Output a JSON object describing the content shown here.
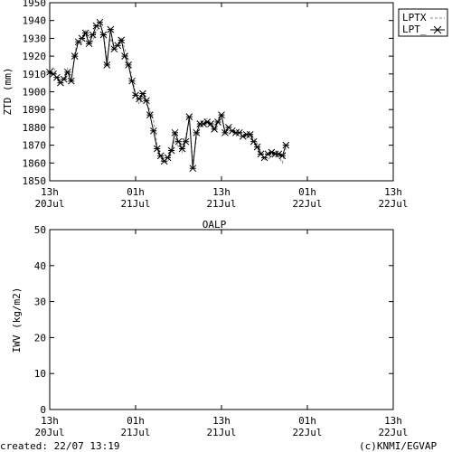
{
  "chart_data": [
    {
      "type": "line",
      "ylabel": "ZTD (mm)",
      "ylim": [
        1850,
        1950
      ],
      "yticks": [
        1850,
        1860,
        1870,
        1880,
        1890,
        1900,
        1910,
        1920,
        1930,
        1940,
        1950
      ],
      "xlim_hours": [
        0,
        48
      ],
      "xticks": [
        {
          "hour": 0,
          "top": "13h",
          "bottom": "20Jul"
        },
        {
          "hour": 12,
          "top": "01h",
          "bottom": "21Jul"
        },
        {
          "hour": 24,
          "top": "13h",
          "bottom": "21Jul"
        },
        {
          "hour": 36,
          "top": "01h",
          "bottom": "22Jul"
        },
        {
          "hour": 48,
          "top": "13h",
          "bottom": "22Jul"
        }
      ],
      "legend_position": "right-outside-top",
      "series": [
        {
          "name": "LPTX",
          "style": "dashed",
          "color": "#888888",
          "points": [
            [
              0.0,
              1910
            ],
            [
              0.5,
              1914
            ],
            [
              1.0,
              1909
            ],
            [
              1.5,
              1906
            ],
            [
              2.0,
              1908
            ],
            [
              2.5,
              1913
            ],
            [
              3.0,
              1905
            ],
            [
              3.5,
              1922
            ],
            [
              4.0,
              1929
            ],
            [
              4.5,
              1927
            ],
            [
              5.0,
              1935
            ],
            [
              5.5,
              1928
            ],
            [
              6.0,
              1928
            ],
            [
              6.5,
              1934
            ],
            [
              7.0,
              1937
            ],
            [
              7.5,
              1933
            ],
            [
              8.0,
              1918
            ],
            [
              8.5,
              1930
            ],
            [
              9.0,
              1925
            ],
            [
              9.5,
              1927
            ],
            [
              10.0,
              1930
            ],
            [
              10.5,
              1924
            ],
            [
              11.0,
              1918
            ],
            [
              11.5,
              1908
            ],
            [
              12.0,
              1899
            ],
            [
              12.5,
              1893
            ],
            [
              13.0,
              1897
            ],
            [
              13.5,
              1893
            ],
            [
              14.0,
              1890
            ],
            [
              14.5,
              1884
            ],
            [
              15.0,
              1870
            ],
            [
              15.5,
              1862
            ],
            [
              16.0,
              1860
            ],
            [
              16.5,
              1861
            ],
            [
              17.0,
              1866
            ],
            [
              17.5,
              1873
            ],
            [
              18.0,
              1869
            ],
            [
              18.5,
              1866
            ],
            [
              19.0,
              1875
            ],
            [
              19.5,
              1884
            ],
            [
              20.0,
              1860
            ],
            [
              20.5,
              1874
            ],
            [
              21.0,
              1880
            ],
            [
              21.5,
              1884
            ],
            [
              22.0,
              1885
            ],
            [
              22.5,
              1881
            ],
            [
              23.0,
              1878
            ],
            [
              23.5,
              1884
            ],
            [
              24.0,
              1887
            ],
            [
              24.5,
              1876
            ],
            [
              25.0,
              1880
            ],
            [
              25.5,
              1878
            ],
            [
              26.0,
              1876
            ],
            [
              26.5,
              1879
            ],
            [
              27.0,
              1876
            ],
            [
              27.5,
              1874
            ],
            [
              28.0,
              1877
            ],
            [
              28.5,
              1874
            ],
            [
              29.0,
              1871
            ],
            [
              29.5,
              1866
            ],
            [
              30.0,
              1862
            ],
            [
              30.5,
              1862
            ],
            [
              31.0,
              1864
            ],
            [
              31.5,
              1866
            ],
            [
              32.0,
              1864
            ],
            [
              32.5,
              1860
            ],
            [
              33.0,
              1868
            ]
          ]
        },
        {
          "name": "LPT_",
          "style": "solid-star",
          "color": "#000000",
          "points": [
            [
              0.0,
              1911
            ],
            [
              0.5,
              1910
            ],
            [
              1.0,
              1908
            ],
            [
              1.5,
              1905
            ],
            [
              2.0,
              1907
            ],
            [
              2.5,
              1911
            ],
            [
              3.0,
              1906
            ],
            [
              3.5,
              1920
            ],
            [
              4.0,
              1928
            ],
            [
              4.5,
              1930
            ],
            [
              5.0,
              1933
            ],
            [
              5.5,
              1927
            ],
            [
              6.0,
              1932
            ],
            [
              6.5,
              1937
            ],
            [
              7.0,
              1939
            ],
            [
              7.5,
              1932
            ],
            [
              8.0,
              1915
            ],
            [
              8.5,
              1935
            ],
            [
              9.0,
              1924
            ],
            [
              9.5,
              1926
            ],
            [
              10.0,
              1929
            ],
            [
              10.5,
              1920
            ],
            [
              11.0,
              1915
            ],
            [
              11.5,
              1906
            ],
            [
              12.0,
              1898
            ],
            [
              12.5,
              1896
            ],
            [
              13.0,
              1899
            ],
            [
              13.5,
              1895
            ],
            [
              14.0,
              1887
            ],
            [
              14.5,
              1878
            ],
            [
              15.0,
              1868
            ],
            [
              15.5,
              1864
            ],
            [
              16.0,
              1861
            ],
            [
              16.5,
              1863
            ],
            [
              17.0,
              1867
            ],
            [
              17.5,
              1877
            ],
            [
              18.0,
              1872
            ],
            [
              18.5,
              1868
            ],
            [
              19.0,
              1872
            ],
            [
              19.5,
              1886
            ],
            [
              20.0,
              1857
            ],
            [
              20.5,
              1877
            ],
            [
              21.0,
              1882
            ],
            [
              21.5,
              1882
            ],
            [
              22.0,
              1883
            ],
            [
              22.5,
              1882
            ],
            [
              23.0,
              1879
            ],
            [
              23.5,
              1883
            ],
            [
              24.0,
              1887
            ],
            [
              24.5,
              1877
            ],
            [
              25.0,
              1880
            ],
            [
              25.5,
              1878
            ],
            [
              26.0,
              1877
            ],
            [
              26.5,
              1877
            ],
            [
              27.0,
              1875
            ],
            [
              27.5,
              1876
            ],
            [
              28.0,
              1876
            ],
            [
              28.5,
              1872
            ],
            [
              29.0,
              1869
            ],
            [
              29.5,
              1865
            ],
            [
              30.0,
              1863
            ],
            [
              30.5,
              1865
            ],
            [
              31.0,
              1866
            ],
            [
              31.5,
              1865
            ],
            [
              32.0,
              1865
            ],
            [
              32.5,
              1864
            ],
            [
              33.0,
              1870
            ]
          ]
        }
      ]
    },
    {
      "type": "line",
      "title": "OALP",
      "ylabel": "IWV (kg/m2)",
      "ylim": [
        0,
        50
      ],
      "yticks": [
        0,
        10,
        20,
        30,
        40,
        50
      ],
      "xlim_hours": [
        0,
        48
      ],
      "xticks": [
        {
          "hour": 0,
          "top": "13h",
          "bottom": "20Jul"
        },
        {
          "hour": 12,
          "top": "01h",
          "bottom": "21Jul"
        },
        {
          "hour": 24,
          "top": "13h",
          "bottom": "21Jul"
        },
        {
          "hour": 36,
          "top": "01h",
          "bottom": "22Jul"
        },
        {
          "hour": 48,
          "top": "13h",
          "bottom": "22Jul"
        }
      ],
      "series": []
    }
  ],
  "footer": {
    "created": "created: 22/07 13:19",
    "credit": "(c)KNMI/EGVAP"
  }
}
